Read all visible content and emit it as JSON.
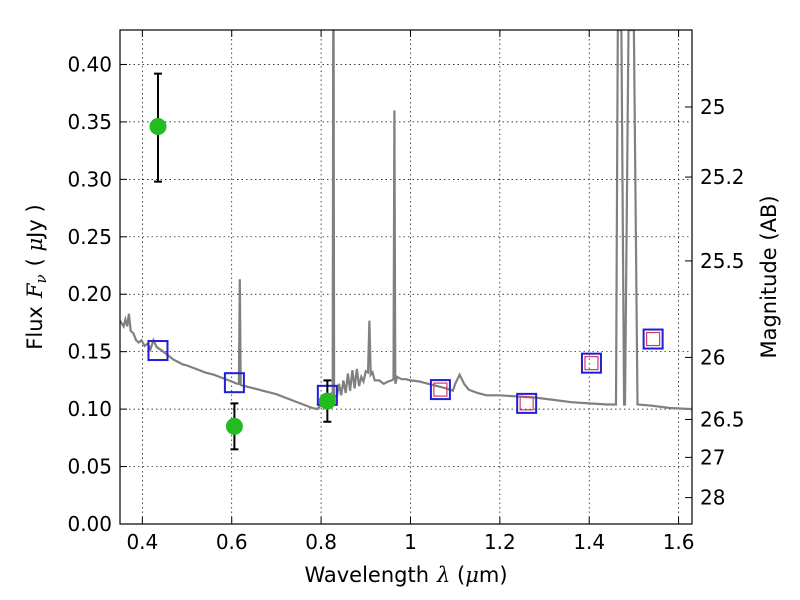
{
  "chart_data": {
    "type": "scatter",
    "xlabel_prefix": "Wavelength",
    "xlabel_symbol": "λ",
    "xlabel_unit_open": " (",
    "xlabel_unit_mu": "μ",
    "xlabel_unit_rest": "m)",
    "ylabel_prefix": "Flux",
    "ylabel_symbol": "F",
    "ylabel_sub": "ν",
    "ylabel_unit_open": "( ",
    "ylabel_unit_mu": "μ",
    "ylabel_unit_rest": "Jy )",
    "y2label": "Magnitude (AB)",
    "xlim": [
      0.35,
      1.63
    ],
    "ylim": [
      0.0,
      0.43
    ],
    "x_ticks": [
      0.4,
      0.6,
      0.8,
      1.0,
      1.2,
      1.4,
      1.6
    ],
    "x_tick_labels": [
      "0.4",
      "0.6",
      "0.8",
      "1",
      "1.2",
      "1.4",
      "1.6"
    ],
    "y_ticks": [
      0.0,
      0.05,
      0.1,
      0.15,
      0.2,
      0.25,
      0.3,
      0.35,
      0.4
    ],
    "y_tick_labels": [
      "0.00",
      "0.05",
      "0.10",
      "0.15",
      "0.20",
      "0.25",
      "0.30",
      "0.35",
      "0.40"
    ],
    "y2_ticks": [
      {
        "label": "25",
        "flux": 0.363
      },
      {
        "label": "25.2",
        "flux": 0.302
      },
      {
        "label": "25.5",
        "flux": 0.229
      },
      {
        "label": "26",
        "flux": 0.145
      },
      {
        "label": "26.5",
        "flux": 0.091
      },
      {
        "label": "27",
        "flux": 0.058
      },
      {
        "label": "28",
        "flux": 0.023
      }
    ],
    "series": [
      {
        "name": "observed",
        "marker": "circle",
        "color": "#22bb22",
        "points": [
          {
            "x": 0.435,
            "y": 0.346,
            "yerr_low": 0.298,
            "yerr_high": 0.392
          },
          {
            "x": 0.606,
            "y": 0.085,
            "yerr_low": 0.065,
            "yerr_high": 0.105
          },
          {
            "x": 0.814,
            "y": 0.107,
            "yerr_low": 0.089,
            "yerr_high": 0.125
          }
        ]
      },
      {
        "name": "model-blue",
        "marker": "square",
        "color": "#1f1fd6",
        "points": [
          {
            "x": 0.435,
            "y": 0.151
          },
          {
            "x": 0.606,
            "y": 0.123
          },
          {
            "x": 0.814,
            "y": 0.112
          },
          {
            "x": 1.067,
            "y": 0.117
          },
          {
            "x": 1.26,
            "y": 0.105
          },
          {
            "x": 1.405,
            "y": 0.14
          },
          {
            "x": 1.543,
            "y": 0.161
          }
        ]
      },
      {
        "name": "model-red",
        "marker": "square",
        "color": "#d43b5a",
        "points": [
          {
            "x": 1.067,
            "y": 0.117
          },
          {
            "x": 1.26,
            "y": 0.105
          },
          {
            "x": 1.405,
            "y": 0.14
          },
          {
            "x": 1.543,
            "y": 0.161
          }
        ]
      }
    ],
    "spectrum": {
      "name": "template-spectrum",
      "color": "#808080",
      "points": [
        [
          0.35,
          0.177
        ],
        [
          0.358,
          0.172
        ],
        [
          0.362,
          0.178
        ],
        [
          0.366,
          0.172
        ],
        [
          0.37,
          0.183
        ],
        [
          0.374,
          0.168
        ],
        [
          0.38,
          0.166
        ],
        [
          0.386,
          0.16
        ],
        [
          0.392,
          0.158
        ],
        [
          0.398,
          0.16
        ],
        [
          0.405,
          0.155
        ],
        [
          0.412,
          0.157
        ],
        [
          0.418,
          0.152
        ],
        [
          0.425,
          0.16
        ],
        [
          0.432,
          0.154
        ],
        [
          0.44,
          0.152
        ],
        [
          0.45,
          0.149
        ],
        [
          0.46,
          0.146
        ],
        [
          0.47,
          0.143
        ],
        [
          0.48,
          0.141
        ],
        [
          0.49,
          0.139
        ],
        [
          0.5,
          0.138
        ],
        [
          0.52,
          0.135
        ],
        [
          0.54,
          0.132
        ],
        [
          0.56,
          0.13
        ],
        [
          0.58,
          0.127
        ],
        [
          0.6,
          0.124
        ],
        [
          0.612,
          0.122
        ],
        [
          0.616,
          0.122
        ],
        [
          0.618,
          0.213
        ],
        [
          0.62,
          0.121
        ],
        [
          0.64,
          0.119
        ],
        [
          0.66,
          0.117
        ],
        [
          0.68,
          0.115
        ],
        [
          0.7,
          0.113
        ],
        [
          0.72,
          0.11
        ],
        [
          0.74,
          0.107
        ],
        [
          0.76,
          0.104
        ],
        [
          0.78,
          0.101
        ],
        [
          0.79,
          0.1
        ],
        [
          0.8,
          0.103
        ],
        [
          0.808,
          0.106
        ],
        [
          0.815,
          0.109
        ],
        [
          0.82,
          0.112
        ],
        [
          0.826,
          0.115
        ],
        [
          0.827,
          0.43
        ],
        [
          0.828,
          0.43
        ],
        [
          0.829,
          0.112
        ],
        [
          0.835,
          0.11
        ],
        [
          0.84,
          0.122
        ],
        [
          0.845,
          0.112
        ],
        [
          0.85,
          0.125
        ],
        [
          0.855,
          0.114
        ],
        [
          0.86,
          0.131
        ],
        [
          0.865,
          0.116
        ],
        [
          0.87,
          0.134
        ],
        [
          0.875,
          0.118
        ],
        [
          0.88,
          0.135
        ],
        [
          0.885,
          0.12
        ],
        [
          0.89,
          0.128
        ],
        [
          0.895,
          0.124
        ],
        [
          0.9,
          0.133
        ],
        [
          0.905,
          0.132
        ],
        [
          0.908,
          0.177
        ],
        [
          0.911,
          0.13
        ],
        [
          0.915,
          0.132
        ],
        [
          0.92,
          0.125
        ],
        [
          0.93,
          0.125
        ],
        [
          0.94,
          0.122
        ],
        [
          0.95,
          0.124
        ],
        [
          0.958,
          0.125
        ],
        [
          0.962,
          0.126
        ],
        [
          0.964,
          0.36
        ],
        [
          0.966,
          0.122
        ],
        [
          0.97,
          0.128
        ],
        [
          0.98,
          0.126
        ],
        [
          0.99,
          0.126
        ],
        [
          1.0,
          0.125
        ],
        [
          1.02,
          0.124
        ],
        [
          1.04,
          0.122
        ],
        [
          1.06,
          0.12
        ],
        [
          1.08,
          0.118
        ],
        [
          1.095,
          0.116
        ],
        [
          1.1,
          0.122
        ],
        [
          1.11,
          0.13
        ],
        [
          1.12,
          0.122
        ],
        [
          1.13,
          0.117
        ],
        [
          1.15,
          0.114
        ],
        [
          1.17,
          0.112
        ],
        [
          1.2,
          0.112
        ],
        [
          1.24,
          0.111
        ],
        [
          1.28,
          0.11
        ],
        [
          1.32,
          0.108
        ],
        [
          1.36,
          0.106
        ],
        [
          1.4,
          0.105
        ],
        [
          1.44,
          0.104
        ],
        [
          1.46,
          0.104
        ],
        [
          1.464,
          0.43
        ],
        [
          1.472,
          0.43
        ],
        [
          1.478,
          0.104
        ],
        [
          1.48,
          0.104
        ],
        [
          1.488,
          0.43
        ],
        [
          1.5,
          0.43
        ],
        [
          1.508,
          0.104
        ],
        [
          1.54,
          0.103
        ],
        [
          1.58,
          0.101
        ],
        [
          1.63,
          0.1
        ]
      ]
    }
  }
}
